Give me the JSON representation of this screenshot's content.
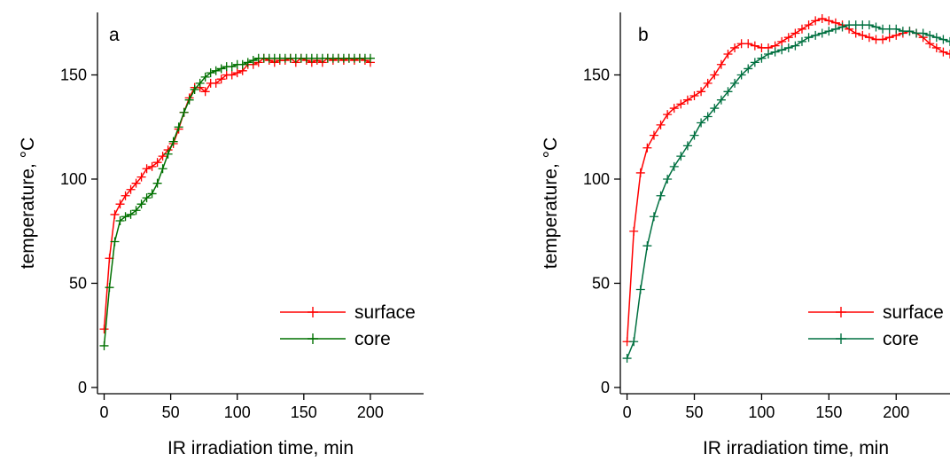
{
  "chart_data": [
    {
      "type": "line",
      "panel_label": "a",
      "xlabel": "IR irradiation time, min",
      "ylabel": "temperature, °C",
      "xlim": [
        -5,
        240
      ],
      "ylim": [
        -3,
        180
      ],
      "xticks": [
        0,
        50,
        100,
        150,
        200
      ],
      "yticks": [
        0,
        50,
        100,
        150
      ],
      "grid": false,
      "legend_position": "bottom-right",
      "series": [
        {
          "name": "surface",
          "color": "#ff0000",
          "x": [
            0,
            4,
            8,
            12,
            16,
            20,
            24,
            28,
            32,
            36,
            40,
            44,
            48,
            52,
            56,
            60,
            64,
            68,
            72,
            76,
            80,
            84,
            88,
            92,
            96,
            100,
            104,
            108,
            112,
            116,
            120,
            124,
            128,
            132,
            136,
            140,
            144,
            148,
            152,
            156,
            160,
            164,
            168,
            172,
            176,
            180,
            184,
            188,
            192,
            196,
            200
          ],
          "y": [
            28,
            62,
            83,
            88,
            92,
            95,
            98,
            101,
            105,
            106,
            108,
            111,
            114,
            117,
            124,
            132,
            139,
            144,
            144,
            142,
            146,
            146,
            148,
            150,
            150,
            151,
            152,
            155,
            155,
            156,
            158,
            157,
            156,
            157,
            157,
            158,
            156,
            158,
            157,
            156,
            157,
            156,
            158,
            157,
            158,
            157,
            158,
            157,
            158,
            157,
            156
          ]
        },
        {
          "name": "core",
          "color": "#007000",
          "x": [
            0,
            4,
            8,
            12,
            16,
            20,
            24,
            28,
            32,
            36,
            40,
            44,
            48,
            52,
            56,
            60,
            64,
            68,
            72,
            76,
            80,
            84,
            88,
            92,
            96,
            100,
            104,
            108,
            112,
            116,
            120,
            124,
            128,
            132,
            136,
            140,
            144,
            148,
            152,
            156,
            160,
            164,
            168,
            172,
            176,
            180,
            184,
            188,
            192,
            196,
            200
          ],
          "y": [
            20,
            48,
            70,
            80,
            82,
            83,
            85,
            88,
            91,
            93,
            98,
            105,
            112,
            118,
            125,
            132,
            138,
            143,
            146,
            149,
            151,
            152,
            153,
            154,
            154,
            155,
            155,
            156,
            157,
            158,
            158,
            158,
            158,
            158,
            158,
            158,
            158,
            158,
            158,
            158,
            158,
            158,
            158,
            158,
            158,
            158,
            158,
            158,
            158,
            158,
            158
          ]
        }
      ]
    },
    {
      "type": "line",
      "panel_label": "b",
      "xlabel": "IR irradiation time, min",
      "ylabel": "temperature, °C",
      "xlim": [
        -5,
        240
      ],
      "ylim": [
        -3,
        180
      ],
      "xticks": [
        0,
        50,
        100,
        150,
        200
      ],
      "yticks": [
        0,
        50,
        100,
        150
      ],
      "grid": false,
      "legend_position": "bottom-right",
      "series": [
        {
          "name": "surface",
          "color": "#ff0000",
          "x": [
            0,
            5,
            10,
            15,
            20,
            25,
            30,
            35,
            40,
            45,
            50,
            55,
            60,
            65,
            70,
            75,
            80,
            85,
            90,
            95,
            100,
            105,
            110,
            115,
            120,
            125,
            130,
            135,
            140,
            145,
            150,
            155,
            160,
            165,
            170,
            175,
            180,
            185,
            190,
            195,
            200,
            205,
            210,
            215,
            220,
            225,
            230,
            235,
            240
          ],
          "y": [
            22,
            75,
            103,
            115,
            121,
            126,
            131,
            134,
            136,
            138,
            140,
            142,
            146,
            150,
            155,
            160,
            163,
            165,
            165,
            164,
            163,
            163,
            164,
            166,
            168,
            170,
            172,
            174,
            176,
            177,
            176,
            175,
            174,
            172,
            170,
            169,
            168,
            167,
            167,
            168,
            169,
            170,
            171,
            170,
            168,
            165,
            163,
            161,
            160
          ]
        },
        {
          "name": "core",
          "color": "#007040",
          "x": [
            0,
            5,
            10,
            15,
            20,
            25,
            30,
            35,
            40,
            45,
            50,
            55,
            60,
            65,
            70,
            75,
            80,
            85,
            90,
            95,
            100,
            105,
            110,
            115,
            120,
            125,
            130,
            135,
            140,
            145,
            150,
            155,
            160,
            165,
            170,
            175,
            180,
            185,
            190,
            195,
            200,
            205,
            210,
            215,
            220,
            225,
            230,
            235,
            240
          ],
          "y": [
            14,
            22,
            47,
            68,
            82,
            92,
            100,
            106,
            111,
            116,
            121,
            127,
            130,
            134,
            138,
            142,
            146,
            150,
            153,
            156,
            158,
            160,
            161,
            162,
            163,
            164,
            166,
            168,
            169,
            170,
            171,
            172,
            173,
            174,
            174,
            174,
            174,
            173,
            172,
            172,
            172,
            171,
            171,
            170,
            170,
            169,
            168,
            167,
            166
          ]
        }
      ]
    }
  ]
}
